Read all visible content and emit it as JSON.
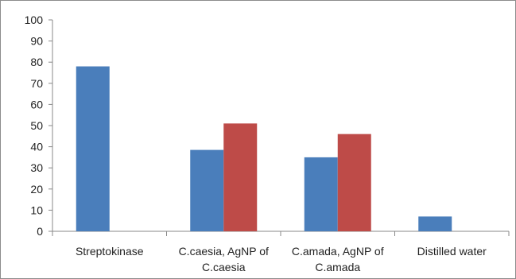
{
  "chart_data": {
    "type": "bar",
    "title": "",
    "xlabel": "",
    "ylabel": "",
    "ylim": [
      0,
      100
    ],
    "yticks": [
      0,
      10,
      20,
      30,
      40,
      50,
      60,
      70,
      80,
      90,
      100
    ],
    "grid": false,
    "legend": "none",
    "categories": [
      [
        "Streptokinase"
      ],
      [
        "C.caesia,  AgNP of",
        "C.caesia"
      ],
      [
        "C.amada,  AgNP of",
        "C.amada"
      ],
      [
        "Distilled water"
      ]
    ],
    "series": [
      {
        "color": "#4a7ebb",
        "values": [
          78,
          38.5,
          35,
          7
        ]
      },
      {
        "color": "#be4b48",
        "values": [
          null,
          51,
          46,
          null
        ]
      }
    ]
  }
}
